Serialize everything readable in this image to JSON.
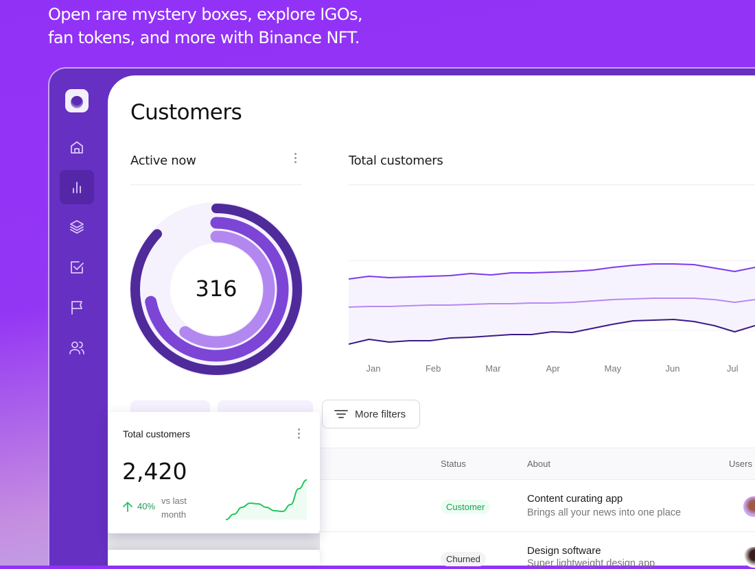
{
  "headline": {
    "line1": "Open rare mystery boxes, explore IGOs,",
    "line2": "fan tokens, and more with Binance NFT."
  },
  "sidebar": {
    "items": [
      {
        "icon": "home-icon",
        "active": false
      },
      {
        "icon": "bar-chart-icon",
        "active": true
      },
      {
        "icon": "layers-icon",
        "active": false
      },
      {
        "icon": "check-square-icon",
        "active": false
      },
      {
        "icon": "flag-icon",
        "active": false
      },
      {
        "icon": "users-icon",
        "active": false
      }
    ]
  },
  "page": {
    "title": "Customers"
  },
  "active_now": {
    "title": "Active now",
    "value": "316",
    "rings": [
      0.87,
      0.72,
      0.6
    ],
    "ring_colors": [
      "#4f2a9b",
      "#7c45d6",
      "#b387f0"
    ]
  },
  "chart_data": {
    "type": "line",
    "title": "Total customers",
    "x_tick_labels": [
      "Jan",
      "Feb",
      "Mar",
      "Apr",
      "May",
      "Jun",
      "Jul"
    ],
    "ylim": [
      0,
      250
    ],
    "grid": true,
    "series": [
      {
        "color": "#7c3aed",
        "values": [
          113,
          117,
          115,
          116,
          117,
          118,
          121,
          119,
          122,
          122,
          123,
          124,
          126,
          130,
          133,
          135,
          135,
          134,
          129,
          124,
          130
        ]
      },
      {
        "color": "#b68af2",
        "values": [
          72,
          73,
          73,
          74,
          75,
          75,
          76,
          77,
          77,
          78,
          78,
          79,
          81,
          83,
          84,
          85,
          85,
          85,
          83,
          79,
          83
        ]
      },
      {
        "color": "#3b1a86",
        "values": [
          18,
          25,
          21,
          23,
          23,
          27,
          28,
          30,
          32,
          32,
          36,
          35,
          41,
          47,
          52,
          53,
          54,
          51,
          45,
          36,
          45
        ]
      }
    ]
  },
  "filters": {
    "more_label": "More filters"
  },
  "table": {
    "headers": [
      "Status",
      "About",
      "Users"
    ],
    "rows": [
      {
        "status": "Customer",
        "status_type": "customer",
        "about_title": "Content curating app",
        "about_sub": "Brings all your news into one place"
      },
      {
        "status": "Churned",
        "status_type": "churned",
        "about_title": "Design software",
        "about_sub": "Super lightweight design app"
      }
    ]
  },
  "stat_card": {
    "title": "Total customers",
    "value": "2,420",
    "change": "40%",
    "change_label_1": "vs last",
    "change_label_2": "month",
    "trend": "up",
    "spark": [
      0,
      8,
      18,
      24,
      23,
      18,
      13,
      12,
      22,
      45,
      58
    ],
    "color": "#22c55e"
  }
}
